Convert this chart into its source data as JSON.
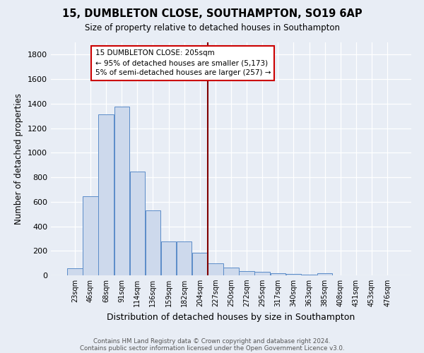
{
  "title": "15, DUMBLETON CLOSE, SOUTHAMPTON, SO19 6AP",
  "subtitle": "Size of property relative to detached houses in Southampton",
  "xlabel": "Distribution of detached houses by size in Southampton",
  "ylabel": "Number of detached properties",
  "footnote1": "Contains HM Land Registry data © Crown copyright and database right 2024.",
  "footnote2": "Contains public sector information licensed under the Open Government Licence v3.0.",
  "bar_labels": [
    "23sqm",
    "46sqm",
    "68sqm",
    "91sqm",
    "114sqm",
    "136sqm",
    "159sqm",
    "182sqm",
    "204sqm",
    "227sqm",
    "250sqm",
    "272sqm",
    "295sqm",
    "317sqm",
    "340sqm",
    "363sqm",
    "385sqm",
    "408sqm",
    "431sqm",
    "453sqm",
    "476sqm"
  ],
  "bar_values": [
    55,
    645,
    1310,
    1375,
    845,
    530,
    275,
    275,
    185,
    100,
    65,
    35,
    30,
    20,
    10,
    5,
    15,
    0,
    0,
    0,
    0
  ],
  "bar_color": "#cdd9ec",
  "bar_edge_color": "#5b8cc8",
  "background_color": "#e8edf5",
  "grid_color": "#ffffff",
  "vline_x_index": 8,
  "vline_color": "#800000",
  "annotation_line1": "15 DUMBLETON CLOSE: 205sqm",
  "annotation_line2": "← 95% of detached houses are smaller (5,173)",
  "annotation_line3": "5% of semi-detached houses are larger (257) →",
  "annotation_box_color": "#ffffff",
  "annotation_box_edge": "#cc0000",
  "ylim": [
    0,
    1900
  ],
  "yticks": [
    0,
    200,
    400,
    600,
    800,
    1000,
    1200,
    1400,
    1600,
    1800
  ]
}
